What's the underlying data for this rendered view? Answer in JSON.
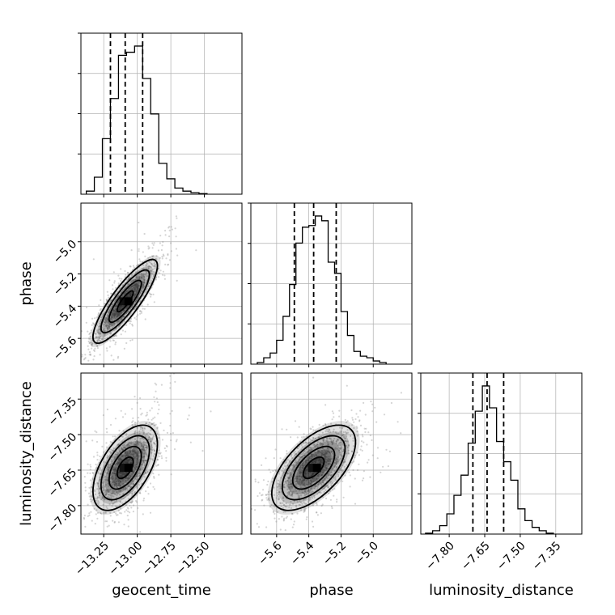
{
  "chart_data": {
    "type": "corner",
    "parameters": [
      "geocent_time",
      "phase",
      "luminosity_distance"
    ],
    "ranges": {
      "geocent_time": [
        -13.42,
        -12.22
      ],
      "phase": [
        -5.76,
        -4.76
      ],
      "luminosity_distance": [
        -7.92,
        -7.24
      ]
    },
    "ticks": {
      "geocent_time": {
        "values": [
          -13.25,
          -13.0,
          -12.75,
          -12.5
        ],
        "labels": [
          "−13.25",
          "−13.00",
          "−12.75",
          "−12.50"
        ]
      },
      "phase": {
        "values": [
          -5.6,
          -5.4,
          -5.2,
          -5.0
        ],
        "labels": [
          "−5.6",
          "−5.4",
          "−5.2",
          "−5.0"
        ]
      },
      "luminosity_distance": {
        "values": [
          -7.8,
          -7.65,
          -7.5,
          -7.35
        ],
        "labels": [
          "−7.80",
          "−7.65",
          "−7.50",
          "−7.35"
        ]
      }
    },
    "quantiles": {
      "geocent_time": [
        -13.2,
        -13.09,
        -12.96
      ],
      "phase": [
        -5.49,
        -5.37,
        -5.23
      ],
      "luminosity_distance": [
        -7.7,
        -7.64,
        -7.57
      ]
    },
    "histograms": [
      {
        "parameter": "geocent_time",
        "bin_edges": [
          -13.38,
          -13.32,
          -13.26,
          -13.2,
          -13.14,
          -13.08,
          -13.02,
          -12.96,
          -12.9,
          -12.84,
          -12.78,
          -12.72,
          -12.66,
          -12.6,
          -12.54,
          -12.48
        ],
        "counts": [
          0.02,
          0.11,
          0.36,
          0.62,
          0.9,
          0.92,
          0.96,
          0.75,
          0.52,
          0.2,
          0.1,
          0.04,
          0.02,
          0.01,
          0.004
        ]
      },
      {
        "parameter": "phase",
        "bin_edges": [
          -5.72,
          -5.68,
          -5.64,
          -5.6,
          -5.56,
          -5.52,
          -5.48,
          -5.44,
          -5.4,
          -5.36,
          -5.32,
          -5.28,
          -5.24,
          -5.2,
          -5.16,
          -5.12,
          -5.08,
          -5.04,
          -5.0,
          -4.96,
          -4.92
        ],
        "counts": [
          0.01,
          0.04,
          0.07,
          0.15,
          0.3,
          0.5,
          0.76,
          0.86,
          0.87,
          0.93,
          0.9,
          0.64,
          0.57,
          0.33,
          0.18,
          0.08,
          0.05,
          0.04,
          0.02,
          0.01
        ]
      },
      {
        "parameter": "luminosity_distance",
        "bin_edges": [
          -7.9,
          -7.87,
          -7.84,
          -7.81,
          -7.78,
          -7.75,
          -7.72,
          -7.69,
          -7.66,
          -7.63,
          -7.6,
          -7.57,
          -7.54,
          -7.51,
          -7.48,
          -7.45,
          -7.42,
          -7.39,
          -7.36
        ],
        "counts": [
          0.005,
          0.02,
          0.05,
          0.12,
          0.23,
          0.35,
          0.54,
          0.73,
          0.88,
          0.75,
          0.55,
          0.43,
          0.32,
          0.15,
          0.08,
          0.04,
          0.02,
          0.005
        ]
      }
    ],
    "joint_2d": [
      {
        "x": "geocent_time",
        "y": "phase",
        "center": [
          -13.09,
          -5.37
        ],
        "spread": [
          0.12,
          0.13
        ],
        "correlation": 0.85,
        "contour_levels_sigma": [
          0.5,
          1.0,
          1.5,
          2.0
        ]
      },
      {
        "x": "geocent_time",
        "y": "luminosity_distance",
        "center": [
          -13.09,
          -7.64
        ],
        "spread": [
          0.12,
          0.09
        ],
        "correlation": 0.55,
        "contour_levels_sigma": [
          0.5,
          1.0,
          1.5,
          2.0
        ]
      },
      {
        "x": "phase",
        "y": "luminosity_distance",
        "center": [
          -5.37,
          -7.64
        ],
        "spread": [
          0.13,
          0.09
        ],
        "correlation": 0.6,
        "contour_levels_sigma": [
          0.5,
          1.0,
          1.5,
          2.0
        ]
      }
    ],
    "grid": true,
    "colors": {
      "line": "#000000",
      "grid": "#b0b0b0",
      "scatter": "#888888",
      "density": "#000000"
    }
  }
}
